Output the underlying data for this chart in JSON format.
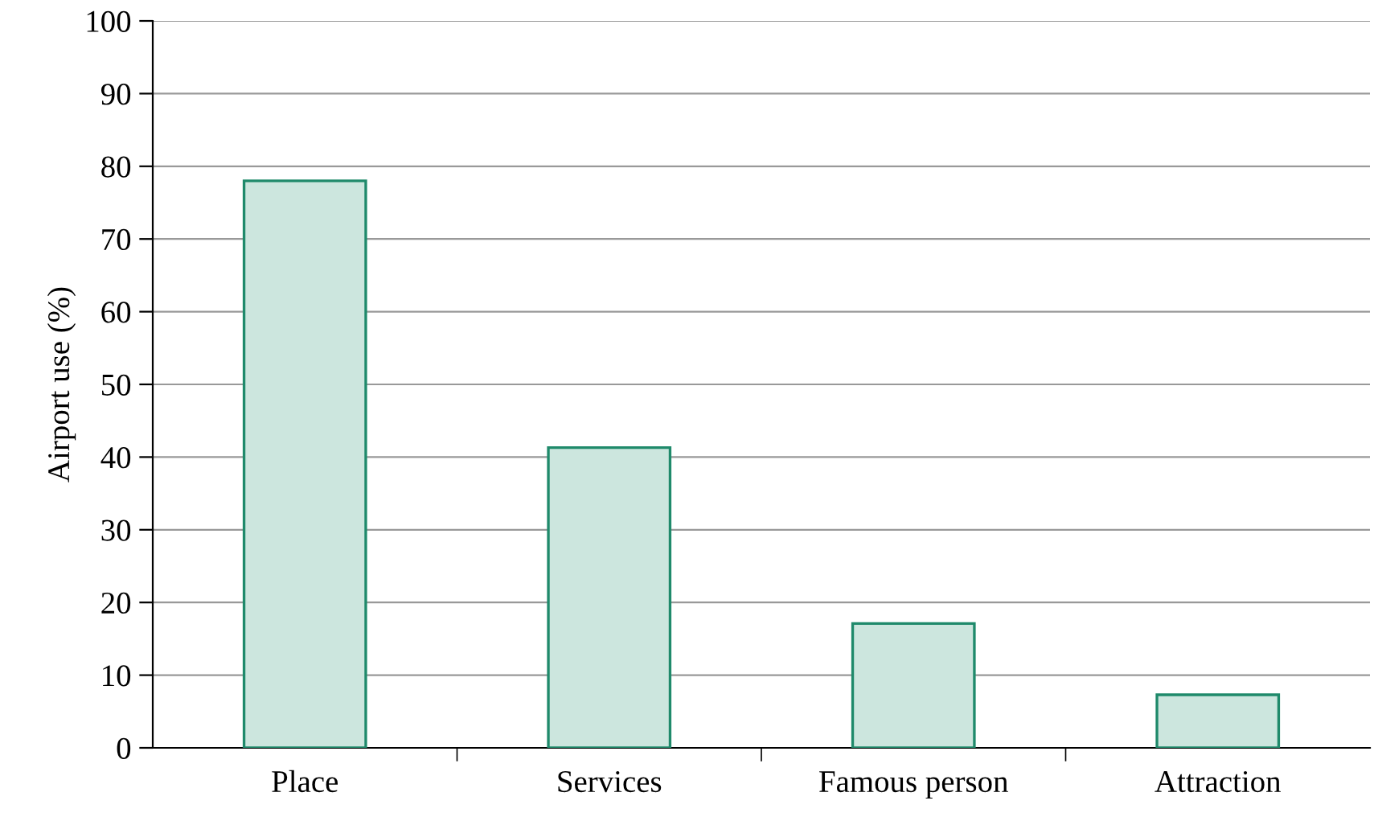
{
  "chart_data": {
    "type": "bar",
    "ylabel": "Airport use (%)",
    "categories": [
      "Place",
      "Services",
      "Famous person",
      "Attraction"
    ],
    "values": [
      78,
      41.3,
      17.1,
      7.3
    ],
    "color": "#cce6de",
    "ylim": [
      0,
      100
    ],
    "yticks": [
      0,
      10,
      20,
      30,
      40,
      50,
      60,
      70,
      80,
      90,
      100
    ],
    "grid": "y"
  }
}
